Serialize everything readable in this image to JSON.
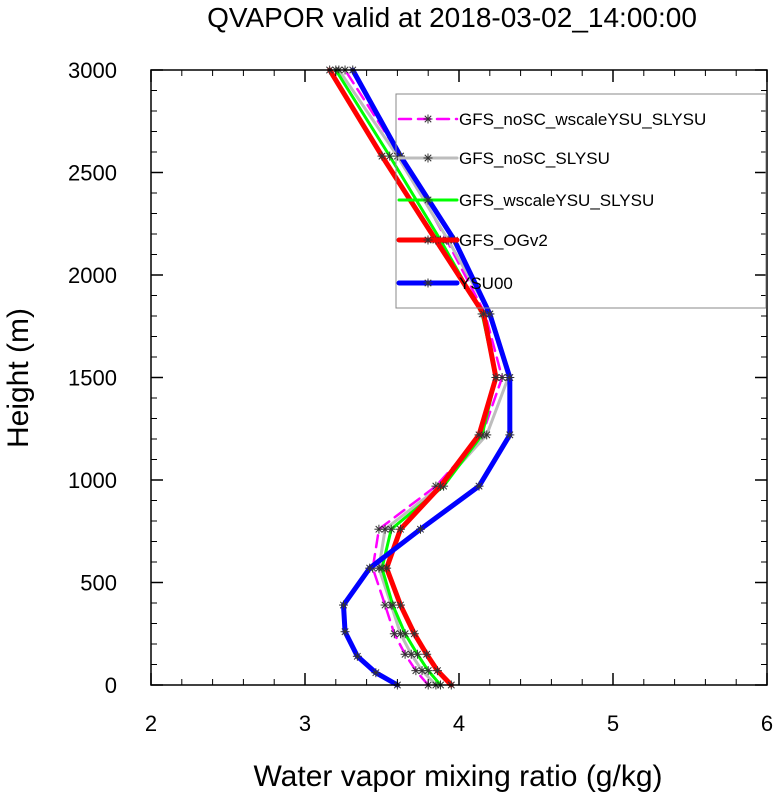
{
  "chart_data": {
    "type": "line",
    "title": "QVAPOR valid at 2018-03-02_14:00:00",
    "xlabel": "Water vapor mixing ratio (g/kg)",
    "ylabel": "Height (m)",
    "xlim": [
      2,
      6
    ],
    "ylim": [
      0,
      3000
    ],
    "xticks": [
      2,
      3,
      4,
      5,
      6
    ],
    "yticks": [
      0,
      500,
      1000,
      1500,
      2000,
      2500,
      3000
    ],
    "grid": false,
    "legend_position": "top-right",
    "series": [
      {
        "name": "GFS_noSC_wscaleYSU_SLYSU",
        "color": "#ff00ff",
        "dash": "dashed",
        "marker": "asterisk",
        "points": [
          {
            "x": 3.8,
            "y": 0
          },
          {
            "x": 3.72,
            "y": 70
          },
          {
            "x": 3.65,
            "y": 150
          },
          {
            "x": 3.58,
            "y": 250
          },
          {
            "x": 3.52,
            "y": 390
          },
          {
            "x": 3.44,
            "y": 570
          },
          {
            "x": 3.48,
            "y": 760
          },
          {
            "x": 3.85,
            "y": 970
          },
          {
            "x": 4.15,
            "y": 1220
          },
          {
            "x": 4.28,
            "y": 1500
          },
          {
            "x": 4.17,
            "y": 1810
          },
          {
            "x": 3.92,
            "y": 2170
          },
          {
            "x": 3.62,
            "y": 2580
          },
          {
            "x": 3.26,
            "y": 3000
          }
        ]
      },
      {
        "name": "GFS_noSC_SLYSU",
        "color": "#bdbdbd",
        "dash": "solid",
        "marker": "asterisk",
        "points": [
          {
            "x": 3.85,
            "y": 0
          },
          {
            "x": 3.76,
            "y": 70
          },
          {
            "x": 3.69,
            "y": 150
          },
          {
            "x": 3.62,
            "y": 250
          },
          {
            "x": 3.56,
            "y": 390
          },
          {
            "x": 3.48,
            "y": 570
          },
          {
            "x": 3.52,
            "y": 760
          },
          {
            "x": 3.88,
            "y": 970
          },
          {
            "x": 4.18,
            "y": 1220
          },
          {
            "x": 4.32,
            "y": 1500
          },
          {
            "x": 4.2,
            "y": 1810
          },
          {
            "x": 3.93,
            "y": 2170
          },
          {
            "x": 3.6,
            "y": 2580
          },
          {
            "x": 3.22,
            "y": 3000
          }
        ]
      },
      {
        "name": "GFS_wscaleYSU_SLYSU",
        "color": "#00ff00",
        "dash": "solid",
        "marker": "asterisk",
        "points": [
          {
            "x": 3.88,
            "y": 0
          },
          {
            "x": 3.8,
            "y": 70
          },
          {
            "x": 3.73,
            "y": 150
          },
          {
            "x": 3.65,
            "y": 250
          },
          {
            "x": 3.57,
            "y": 390
          },
          {
            "x": 3.5,
            "y": 570
          },
          {
            "x": 3.56,
            "y": 760
          },
          {
            "x": 3.9,
            "y": 970
          },
          {
            "x": 4.15,
            "y": 1220
          },
          {
            "x": 4.24,
            "y": 1500
          },
          {
            "x": 4.15,
            "y": 1810
          },
          {
            "x": 3.88,
            "y": 2170
          },
          {
            "x": 3.55,
            "y": 2580
          },
          {
            "x": 3.2,
            "y": 3000
          }
        ]
      },
      {
        "name": "GFS_OGv2",
        "color": "#ff0000",
        "dash": "solid",
        "marker": "asterisk",
        "points": [
          {
            "x": 3.95,
            "y": 0
          },
          {
            "x": 3.86,
            "y": 70
          },
          {
            "x": 3.79,
            "y": 150
          },
          {
            "x": 3.71,
            "y": 250
          },
          {
            "x": 3.62,
            "y": 390
          },
          {
            "x": 3.53,
            "y": 570
          },
          {
            "x": 3.62,
            "y": 760
          },
          {
            "x": 3.88,
            "y": 970
          },
          {
            "x": 4.13,
            "y": 1220
          },
          {
            "x": 4.24,
            "y": 1500
          },
          {
            "x": 4.16,
            "y": 1810
          },
          {
            "x": 3.85,
            "y": 2170
          },
          {
            "x": 3.5,
            "y": 2580
          },
          {
            "x": 3.16,
            "y": 3000
          }
        ]
      },
      {
        "name": "YSU00",
        "color": "#0000ff",
        "dash": "solid",
        "marker": "asterisk",
        "points": [
          {
            "x": 3.6,
            "y": 0
          },
          {
            "x": 3.46,
            "y": 60
          },
          {
            "x": 3.34,
            "y": 140
          },
          {
            "x": 3.26,
            "y": 260
          },
          {
            "x": 3.25,
            "y": 390
          },
          {
            "x": 3.42,
            "y": 570
          },
          {
            "x": 3.75,
            "y": 760
          },
          {
            "x": 4.13,
            "y": 970
          },
          {
            "x": 4.33,
            "y": 1220
          },
          {
            "x": 4.33,
            "y": 1500
          },
          {
            "x": 4.2,
            "y": 1810
          },
          {
            "x": 3.97,
            "y": 2170
          },
          {
            "x": 3.62,
            "y": 2580
          },
          {
            "x": 3.31,
            "y": 3000
          }
        ]
      }
    ]
  }
}
